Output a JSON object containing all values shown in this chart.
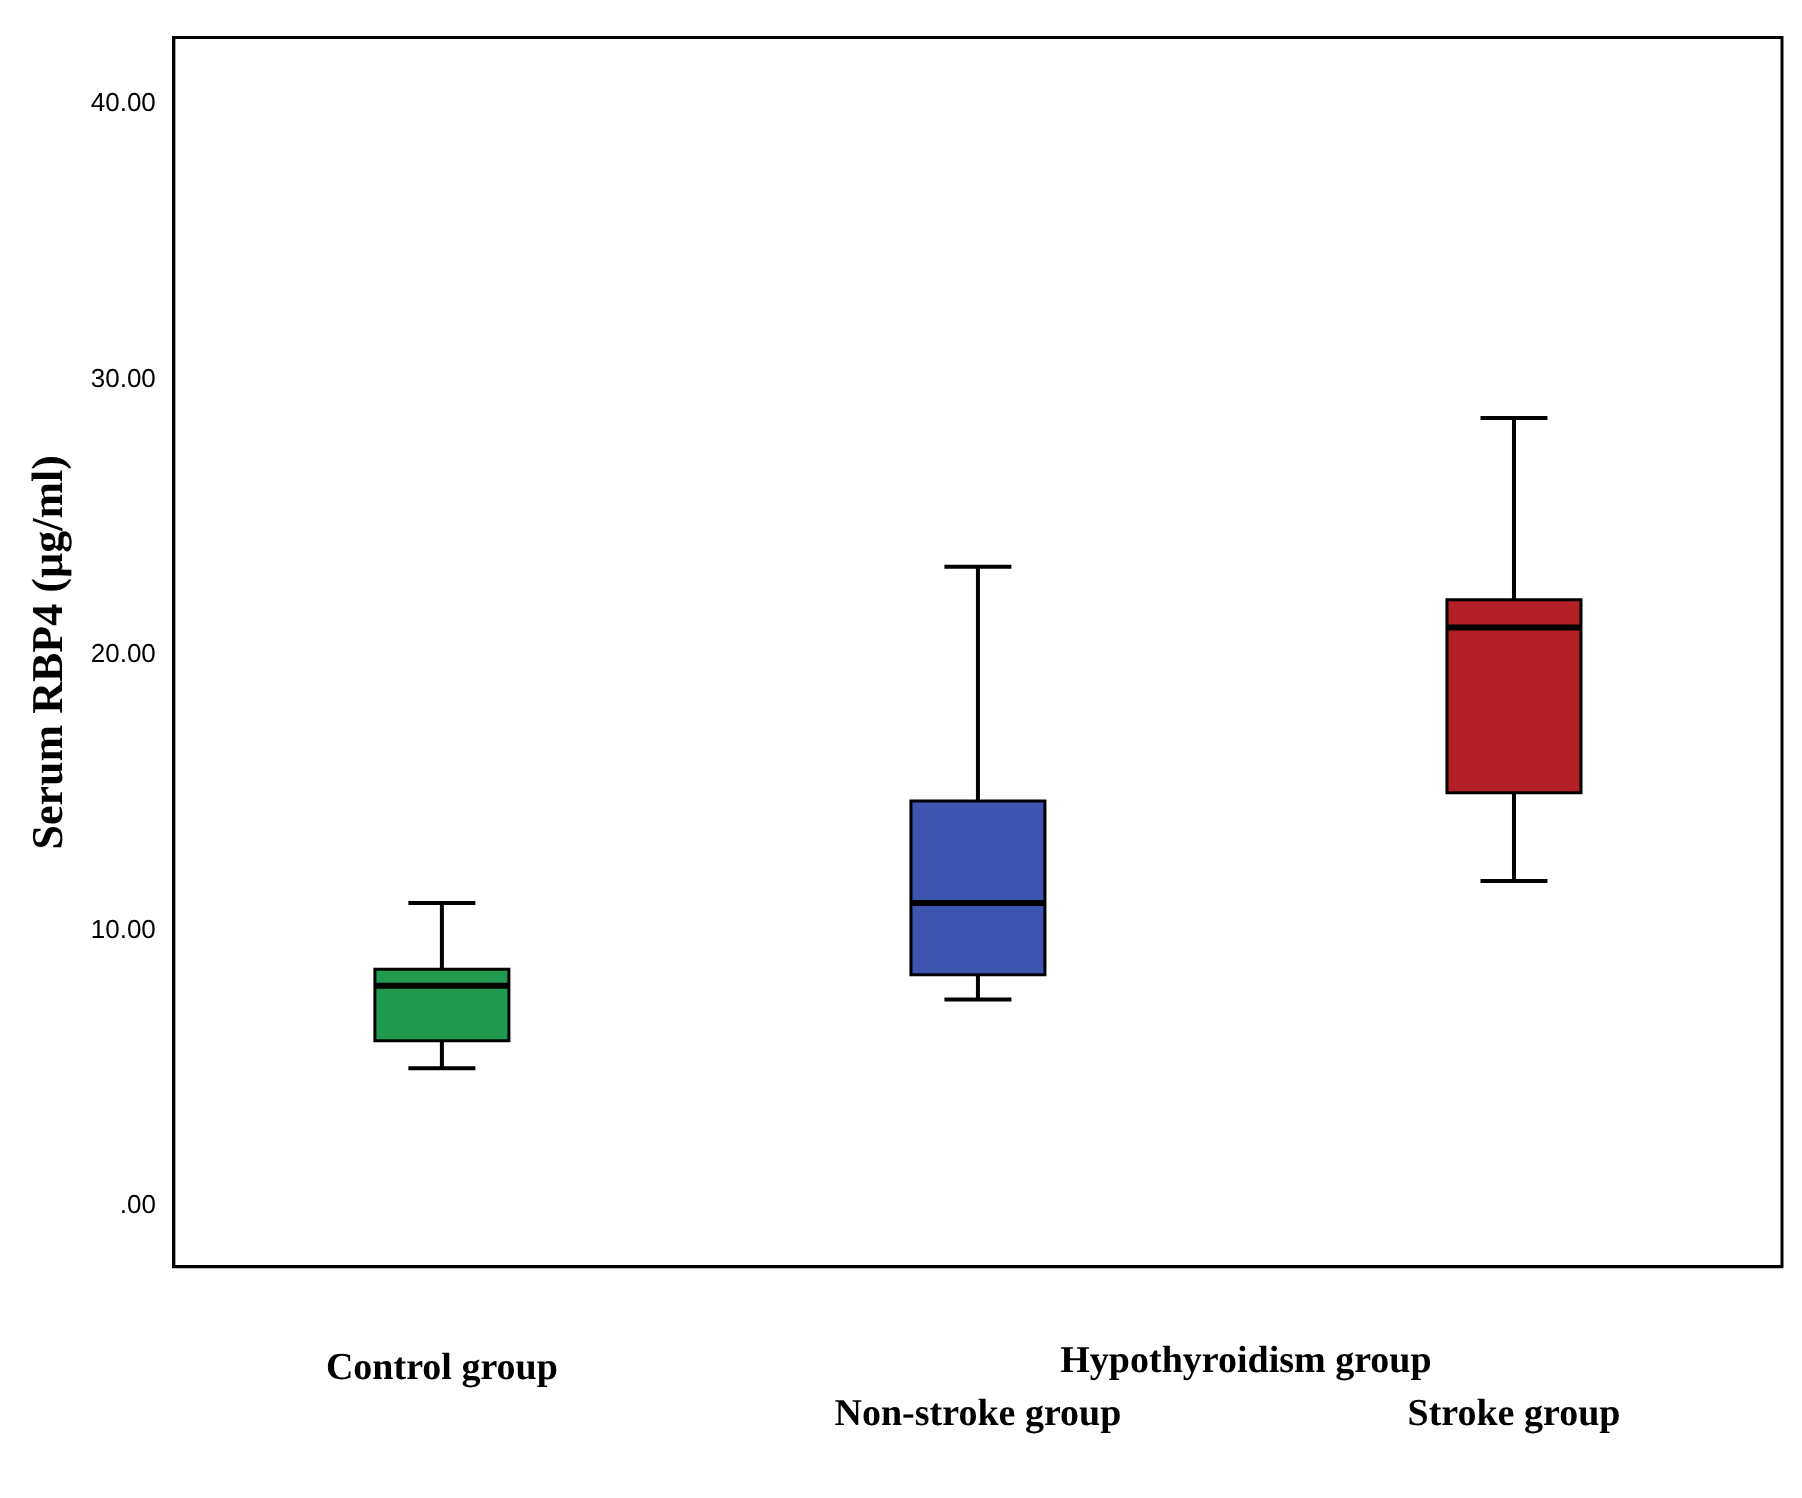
{
  "chart_data": {
    "type": "box",
    "ylabel": "Serum RBP4 (µg/ml)",
    "categories": [
      "Control group",
      "Non-stroke group",
      "Stroke group"
    ],
    "colors": [
      "#1f9a4e",
      "#3d55b0",
      "#b32025"
    ],
    "boxes": [
      {
        "low": 5.0,
        "q1": 6.0,
        "median": 8.0,
        "q3": 8.6,
        "high": 11.0
      },
      {
        "low": 7.5,
        "q1": 8.4,
        "median": 11.0,
        "q3": 14.7,
        "high": 23.2
      },
      {
        "low": 11.8,
        "q1": 15.0,
        "median": 21.0,
        "q3": 22.0,
        "high": 28.6
      }
    ],
    "ylim": [
      -2.2,
      42.4
    ],
    "yticks": [
      {
        "value": 0,
        "label": ".00"
      },
      {
        "value": 10,
        "label": "10.00"
      },
      {
        "value": 20,
        "label": "20.00"
      },
      {
        "value": 30,
        "label": "30.00"
      },
      {
        "value": 40,
        "label": "40.00"
      }
    ],
    "annotations": [
      "Hypothyroidism group"
    ],
    "grid": false
  }
}
